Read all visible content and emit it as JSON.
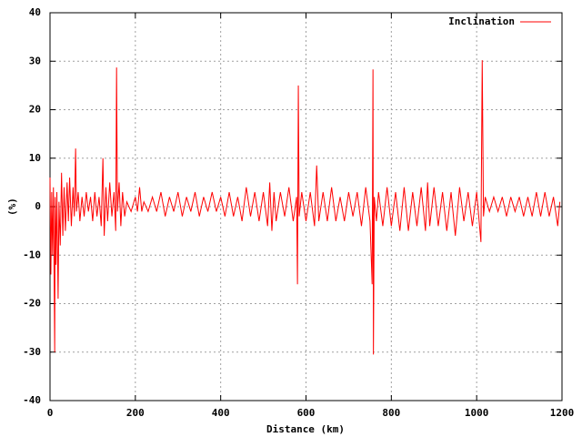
{
  "chart_data": {
    "type": "line",
    "xlabel": "Distance (km)",
    "ylabel": "(%)",
    "x": [
      0,
      2,
      4,
      6,
      8,
      11,
      12,
      14,
      16,
      19,
      21,
      24,
      27,
      30,
      33,
      36,
      40,
      43,
      46,
      50,
      54,
      57,
      60,
      62,
      66,
      70,
      75,
      80,
      85,
      90,
      95,
      100,
      105,
      110,
      115,
      120,
      124,
      127,
      131,
      135,
      140,
      145,
      150,
      154,
      156,
      158,
      162,
      166,
      170,
      175,
      180,
      190,
      200,
      205,
      210,
      215,
      220,
      230,
      240,
      250,
      260,
      270,
      280,
      290,
      300,
      310,
      320,
      330,
      340,
      350,
      360,
      370,
      380,
      390,
      400,
      410,
      420,
      430,
      440,
      450,
      460,
      470,
      480,
      490,
      500,
      510,
      515,
      520,
      525,
      530,
      540,
      550,
      560,
      570,
      578,
      580,
      582,
      584,
      590,
      600,
      610,
      620,
      625,
      630,
      640,
      650,
      660,
      670,
      680,
      690,
      700,
      710,
      720,
      730,
      740,
      750,
      755,
      757,
      758,
      760,
      765,
      770,
      780,
      790,
      800,
      810,
      820,
      830,
      840,
      850,
      860,
      870,
      880,
      885,
      890,
      900,
      910,
      920,
      930,
      940,
      950,
      960,
      970,
      980,
      990,
      1000,
      1010,
      1013,
      1016,
      1020,
      1030,
      1040,
      1050,
      1060,
      1070,
      1080,
      1090,
      1100,
      1110,
      1120,
      1130,
      1140,
      1150,
      1160,
      1170,
      1180,
      1190,
      1195
    ],
    "series": [
      {
        "name": "Inclination",
        "color": "#ff0000",
        "values": [
          6,
          -14,
          3,
          -10,
          4,
          -30,
          2,
          -12,
          3,
          -19,
          1,
          -8,
          7,
          -6,
          4,
          -5,
          5,
          -3,
          6,
          -4,
          4,
          -2,
          12,
          -1,
          3,
          -3,
          2,
          -2,
          3,
          -1,
          2,
          -3,
          3,
          -2,
          2,
          -4,
          10,
          -6,
          4,
          -3,
          5,
          -2,
          3,
          -5,
          28.7,
          -1,
          5,
          -4,
          3,
          -2,
          1,
          -1,
          2,
          -1,
          4,
          -1,
          1,
          -1,
          2,
          -1,
          3,
          -2,
          2,
          -1,
          3,
          -2,
          2,
          -1,
          3,
          -2,
          2,
          -1,
          3,
          -1,
          2,
          -2,
          3,
          -2,
          2,
          -3,
          4,
          -2,
          3,
          -3,
          3,
          -4,
          5,
          -5,
          3,
          -3,
          3,
          -2,
          4,
          -3,
          2,
          -16,
          25,
          -2,
          3,
          -3,
          3,
          -4,
          8.5,
          -3,
          3,
          -3,
          4,
          -3,
          2,
          -3,
          3,
          -2,
          3,
          -4,
          4,
          -3,
          -16,
          28.3,
          -30.5,
          2,
          -3,
          3,
          -4,
          4,
          -4,
          3,
          -5,
          4,
          -5,
          3,
          -4,
          4,
          -5,
          5,
          -4,
          4,
          -4,
          3,
          -5,
          3,
          -6,
          4,
          -3,
          3,
          -4,
          3,
          -7.3,
          30.2,
          -2,
          2,
          -1,
          2,
          -1,
          2,
          -2,
          2,
          -1,
          2,
          -2,
          2,
          -2,
          3,
          -2,
          3,
          -2,
          2,
          -4,
          1
        ]
      }
    ],
    "xlim": [
      0,
      1200
    ],
    "xticks": [
      0,
      200,
      400,
      600,
      800,
      1000,
      1200
    ],
    "ylim": [
      -40,
      40
    ],
    "yticks": [
      -40,
      -30,
      -20,
      -10,
      0,
      10,
      20,
      30,
      40
    ],
    "grid": true,
    "legend": "top-right"
  }
}
